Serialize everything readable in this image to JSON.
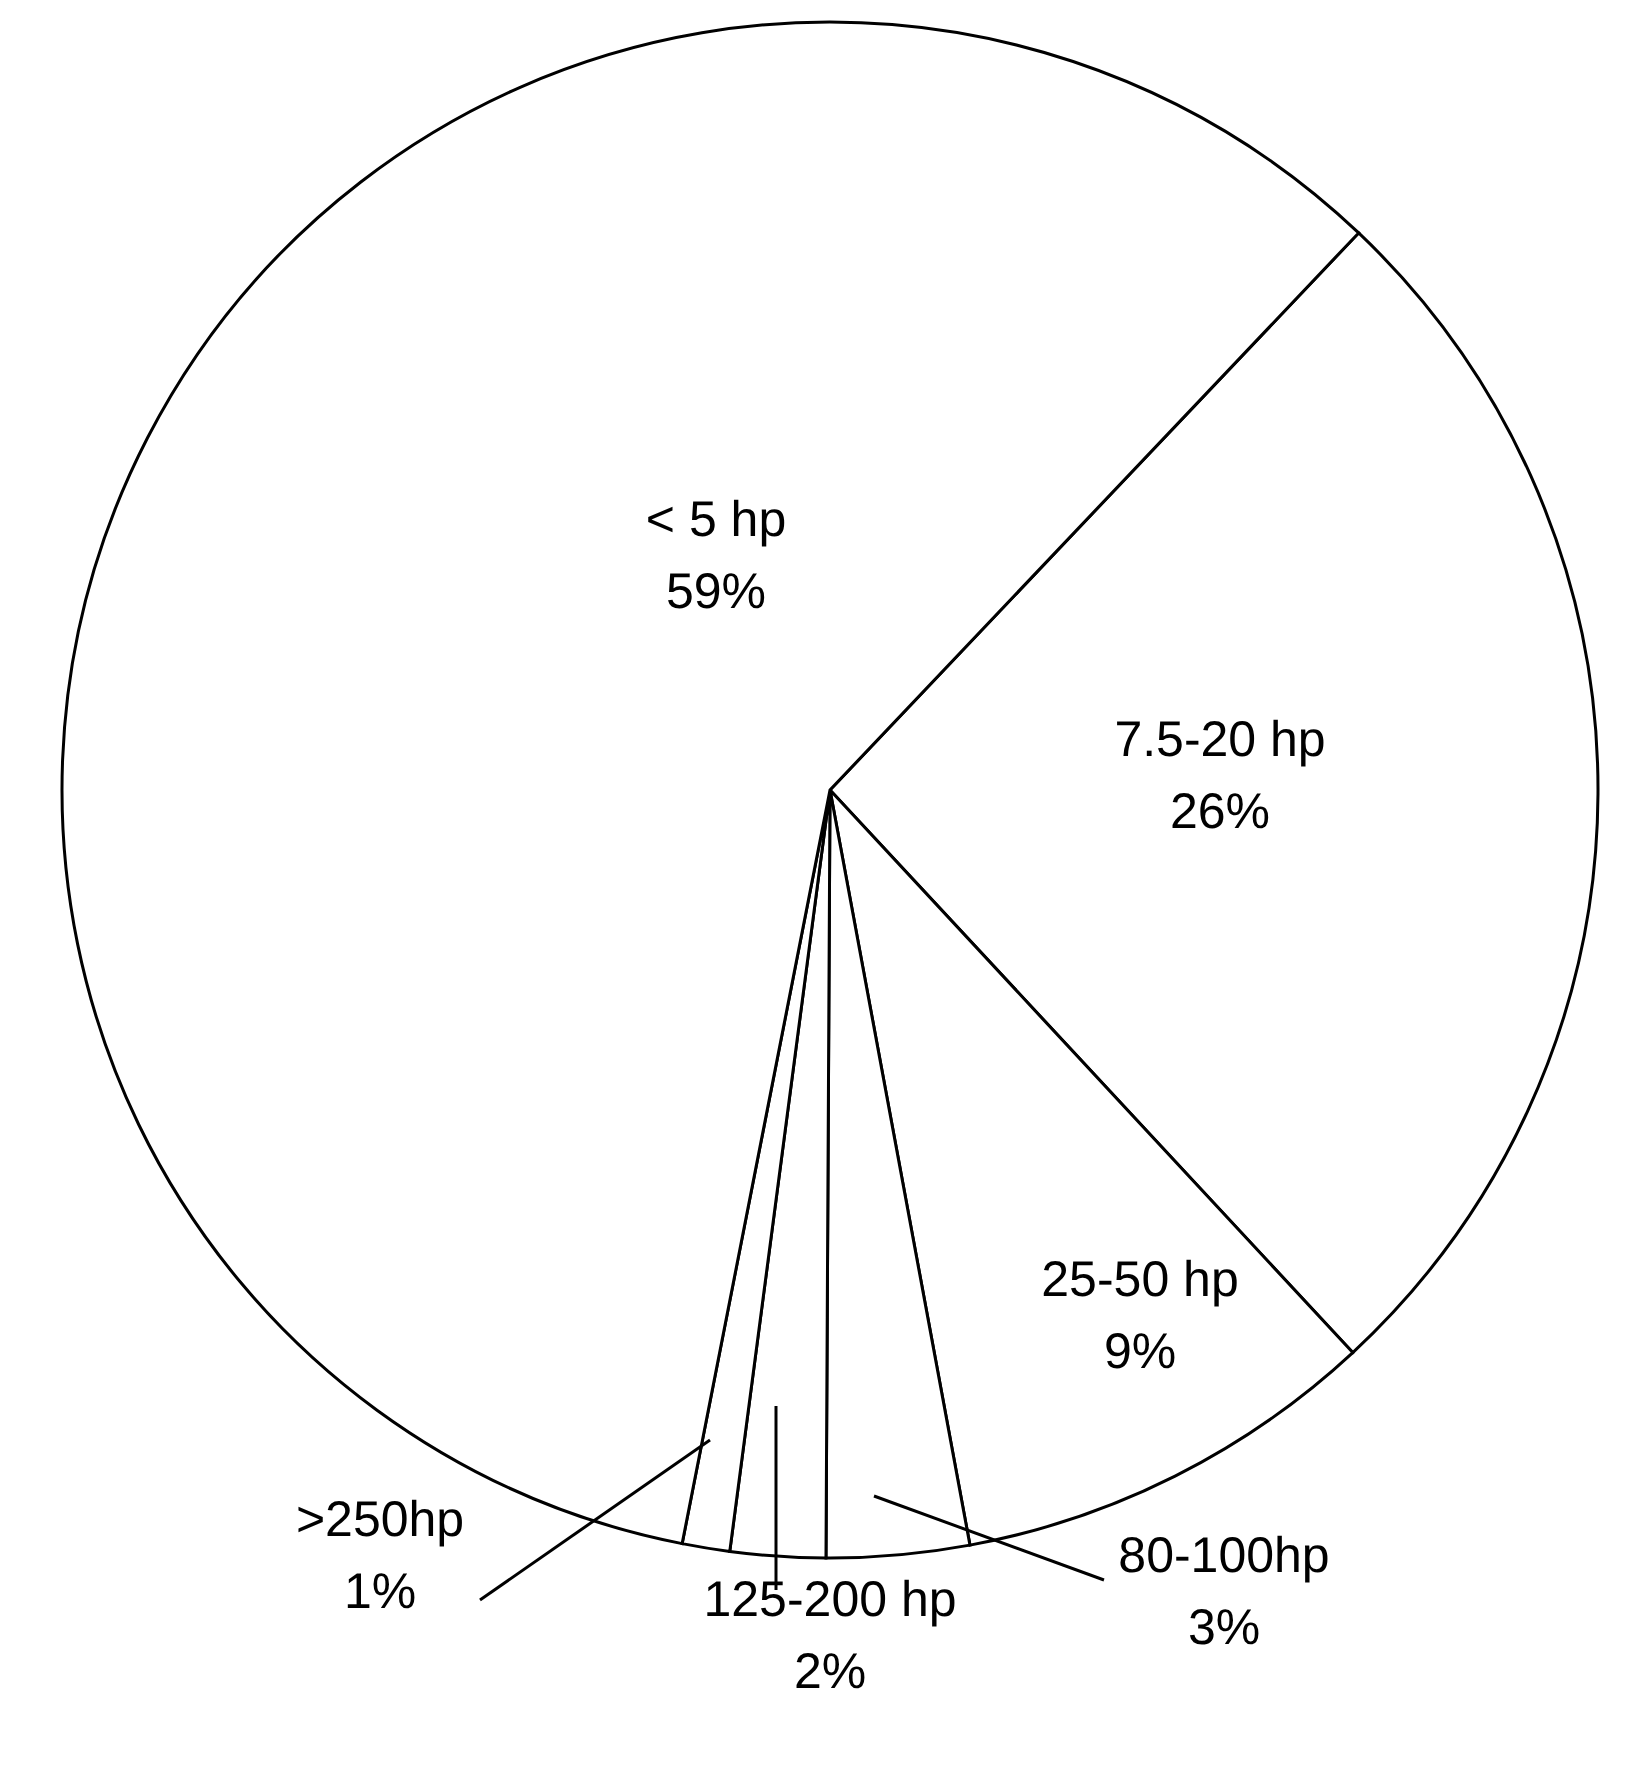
{
  "chart_data": {
    "type": "pie",
    "categories": [
      "7.5-20 hp",
      "25-50 hp",
      "80-100hp",
      "125-200 hp",
      ">250hp",
      "< 5 hp"
    ],
    "values": [
      26,
      9,
      3,
      2,
      1,
      59
    ],
    "value_labels": [
      "26%",
      "9%",
      "3%",
      "2%",
      "1%",
      "59%"
    ],
    "colors": [
      "#ffffff",
      "#ffffff",
      "#ffffff",
      "#ffffff",
      "#ffffff",
      "#ffffff"
    ]
  }
}
